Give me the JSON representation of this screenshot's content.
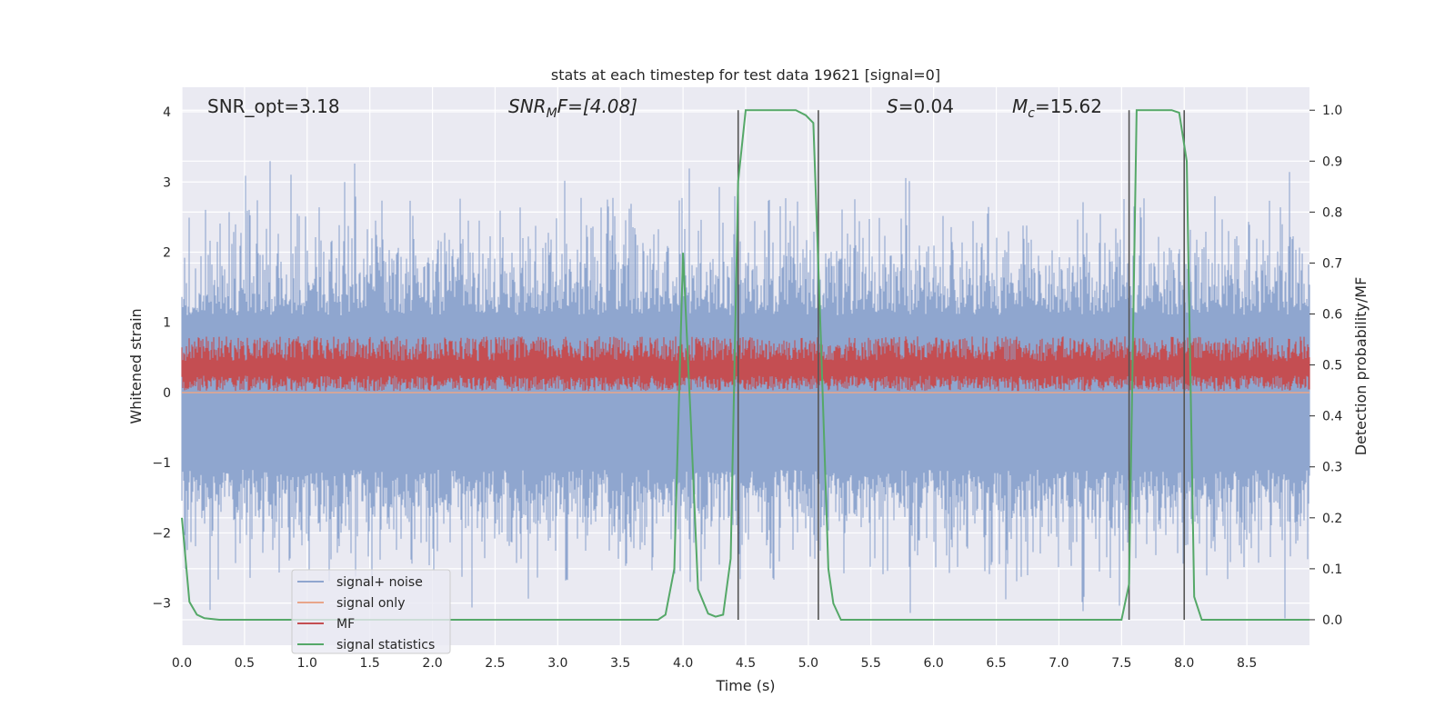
{
  "chart_data": {
    "type": "line",
    "title": "stats at each timestep for test data 19621 [signal=0]",
    "xlabel": "Time (s)",
    "ylabel": "Whitened strain",
    "y2label": "Detection probability/MF",
    "xlim": [
      0.0,
      9.0
    ],
    "ylim": [
      -3.6,
      4.35
    ],
    "y2lim": [
      -0.05,
      1.045
    ],
    "xticks": [
      "0.0",
      "0.5",
      "1.0",
      "1.5",
      "2.0",
      "2.5",
      "3.0",
      "3.5",
      "4.0",
      "4.5",
      "5.0",
      "5.5",
      "6.0",
      "6.5",
      "7.0",
      "7.5",
      "8.0",
      "8.5"
    ],
    "yticks": [
      "4",
      "3",
      "2",
      "1",
      "0",
      "−1",
      "−2",
      "−3"
    ],
    "y2ticks": [
      "1.0",
      "0.9",
      "0.8",
      "0.7",
      "0.6",
      "0.5",
      "0.4",
      "0.3",
      "0.2",
      "0.1",
      "0.0"
    ],
    "grid": true,
    "legend_position": "lower-left",
    "annotations": {
      "snr_opt": "SNR_opt=3.18",
      "snr_mf_sym": "SNR",
      "snr_mf_sub": "M",
      "snr_mf_rest": "F=[4.08]",
      "s_sym": "S",
      "s_rest": "=0.04",
      "mc_sym": "M",
      "mc_sub": "c",
      "mc_rest": "=15.62"
    },
    "vertical_lines_x": [
      4.44,
      5.08,
      7.56,
      8.0
    ],
    "series": [
      {
        "name": "signal+ noise",
        "color": "#8fa6cf",
        "style": "noise band, amplitude approx ±2.5 with spikes to 3.3 / −3.3"
      },
      {
        "name": "signal only",
        "color": "#e8a58a",
        "value": 0.0
      },
      {
        "name": "MF",
        "color": "#c44e52",
        "style": "band between 0.0 and 0.8 whitened strain"
      },
      {
        "name": "signal statistics",
        "color": "#55a868",
        "axis": "right",
        "x": [
          0.0,
          0.06,
          0.12,
          0.18,
          0.3,
          3.8,
          3.86,
          3.93,
          4.0,
          4.06,
          4.12,
          4.2,
          4.26,
          4.32,
          4.38,
          4.44,
          4.5,
          4.56,
          4.9,
          4.98,
          5.04,
          5.1,
          5.16,
          5.2,
          5.26,
          7.5,
          7.56,
          7.62,
          7.9,
          7.96,
          8.02,
          8.08,
          8.14,
          9.0
        ],
        "y": [
          0.2,
          0.035,
          0.01,
          0.003,
          0.0,
          0.0,
          0.01,
          0.1,
          0.72,
          0.4,
          0.06,
          0.012,
          0.006,
          0.01,
          0.12,
          0.86,
          1.0,
          1.0,
          1.0,
          0.99,
          0.975,
          0.55,
          0.1,
          0.032,
          0.0,
          0.0,
          0.07,
          1.0,
          1.0,
          0.995,
          0.9,
          0.045,
          0.0,
          0.0
        ]
      }
    ]
  }
}
